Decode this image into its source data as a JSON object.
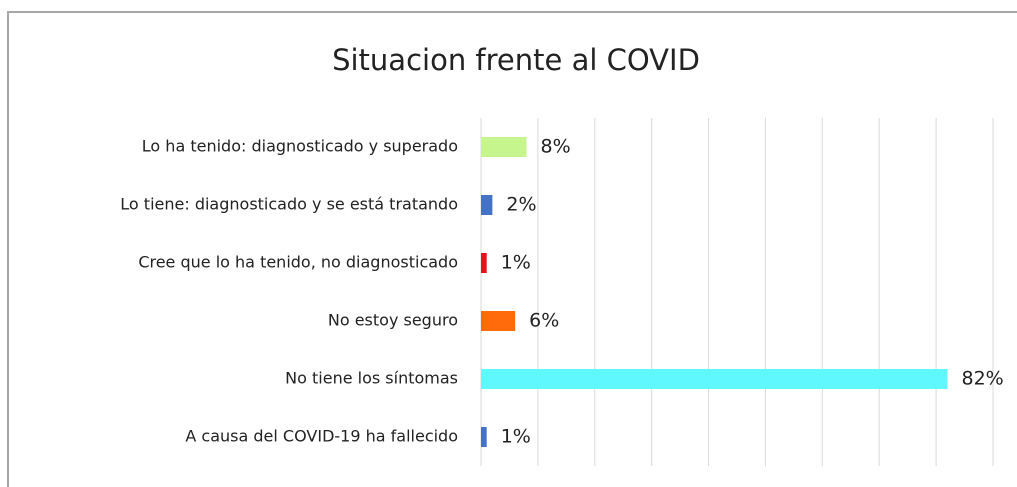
{
  "chart_data": {
    "type": "bar",
    "orientation": "horizontal",
    "title": "Situacion frente al COVID",
    "categories": [
      "Lo ha tenido: diagnosticado y  superado",
      "Lo tiene: diagnosticado y se está tratando",
      "Cree que lo ha tenido, no diagnosticado",
      "No estoy seguro",
      "No tiene los síntomas",
      "A causa del COVID-19 ha fallecido"
    ],
    "values": [
      8,
      2,
      1,
      6,
      82,
      1
    ],
    "value_labels": [
      "8%",
      "2%",
      "1%",
      "6%",
      "82%",
      "1%"
    ],
    "colors": [
      "#c6f58e",
      "#4472c4",
      "#e8101a",
      "#ff6a0a",
      "#5ff8ff",
      "#4472c4"
    ],
    "xlim": [
      0,
      90
    ],
    "xticks": [
      0,
      10,
      20,
      30,
      40,
      50,
      60,
      70,
      80,
      90
    ],
    "grid": true
  }
}
